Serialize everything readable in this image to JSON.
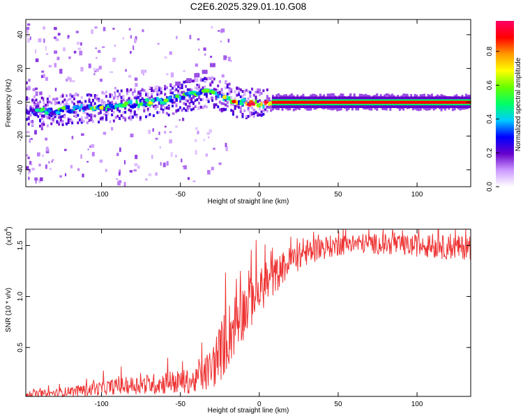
{
  "figure": {
    "title": "C2E6.2025.329.01.10.G08"
  },
  "chart_data": [
    {
      "type": "heatmap",
      "xlabel": "Height of straight line (km)",
      "ylabel": "Frequency (Hz)",
      "xlim": [
        -148,
        134
      ],
      "ylim": [
        -50,
        49
      ],
      "xticks": [
        -100,
        -50,
        0,
        50,
        100
      ],
      "yticks": [
        -40,
        -20,
        0,
        20,
        40
      ],
      "colorbar": {
        "label": "Normalized spectral amplitude",
        "range": [
          0,
          0.98
        ],
        "ticks": [
          "0.0",
          "0.2",
          "0.4",
          "0.6",
          "0.8"
        ],
        "colors": [
          "#ffffff",
          "#cc99ff",
          "#6600cc",
          "#0000ff",
          "#00ccff",
          "#00ff66",
          "#66ff00",
          "#ffff00",
          "#ff9900",
          "#ff0000",
          "#ff0066"
        ]
      },
      "ridge": {
        "x": [
          -148,
          -130,
          -120,
          -110,
          -100,
          -90,
          -80,
          -70,
          -60,
          -50,
          -45,
          -40,
          -35,
          -30,
          -25,
          -20,
          -15,
          -10,
          -5,
          0,
          5,
          10,
          40,
          80,
          134
        ],
        "frequency": [
          -6,
          -5,
          -4,
          -3.5,
          -3,
          -2,
          -1,
          0,
          1,
          3,
          4,
          5,
          6,
          5.5,
          4,
          2,
          0,
          0,
          -1,
          -1,
          -1,
          0,
          0,
          0,
          0
        ],
        "amplitude": [
          0.4,
          0.45,
          0.5,
          0.5,
          0.55,
          0.55,
          0.55,
          0.55,
          0.5,
          0.45,
          0.5,
          0.55,
          0.55,
          0.55,
          0.6,
          0.65,
          0.75,
          0.8,
          0.85,
          0.85,
          0.9,
          0.9,
          0.92,
          0.9,
          0.85
        ]
      },
      "faint_branch": {
        "x": [
          -52,
          -45,
          -40,
          -35,
          -30
        ],
        "frequency": [
          11,
          13,
          16,
          18,
          22
        ],
        "amplitude": 0.15
      }
    },
    {
      "type": "line",
      "xlabel": "Height of straight line (km)",
      "ylabel": "SNR (10 * v/v)",
      "y_multiplier": "(x10",
      "y_multiplier_exp": "4",
      "xlim": [
        -148,
        134
      ],
      "ylim": [
        0.02,
        1.66
      ],
      "xticks": [
        -100,
        -50,
        0,
        50,
        100
      ],
      "yticks": [
        "0.5",
        "1.0",
        "1.5"
      ],
      "series": [
        {
          "color": "#ee3333",
          "envelope_x": [
            -148,
            -130,
            -120,
            -110,
            -100,
            -90,
            -80,
            -70,
            -60,
            -50,
            -40,
            -30,
            -25,
            -20,
            -15,
            -10,
            -5,
            0,
            5,
            10,
            15,
            20,
            30,
            40,
            50,
            60,
            70,
            80,
            90,
            100,
            110,
            120,
            134
          ],
          "envelope_mean": [
            0.04,
            0.05,
            0.07,
            0.08,
            0.1,
            0.12,
            0.13,
            0.14,
            0.15,
            0.16,
            0.17,
            0.3,
            0.45,
            0.6,
            0.75,
            0.85,
            0.95,
            1.05,
            1.12,
            1.2,
            1.28,
            1.35,
            1.43,
            1.48,
            1.5,
            1.52,
            1.52,
            1.51,
            1.5,
            1.5,
            1.49,
            1.48,
            1.48
          ],
          "envelope_noise": [
            0.03,
            0.04,
            0.05,
            0.06,
            0.07,
            0.08,
            0.09,
            0.1,
            0.11,
            0.12,
            0.12,
            0.22,
            0.3,
            0.32,
            0.32,
            0.28,
            0.25,
            0.22,
            0.2,
            0.18,
            0.16,
            0.15,
            0.13,
            0.12,
            0.1,
            0.1,
            0.1,
            0.1,
            0.1,
            0.11,
            0.11,
            0.12,
            0.12
          ]
        }
      ]
    }
  ]
}
